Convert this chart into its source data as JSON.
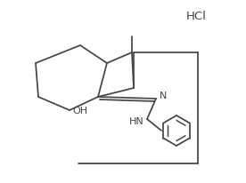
{
  "bg": "#ffffff",
  "lc": "#454545",
  "lw": 1.25,
  "tc": "#454545",
  "hcl": "HCl",
  "oh": "OH",
  "n_label": "N",
  "hn_label": "HN"
}
